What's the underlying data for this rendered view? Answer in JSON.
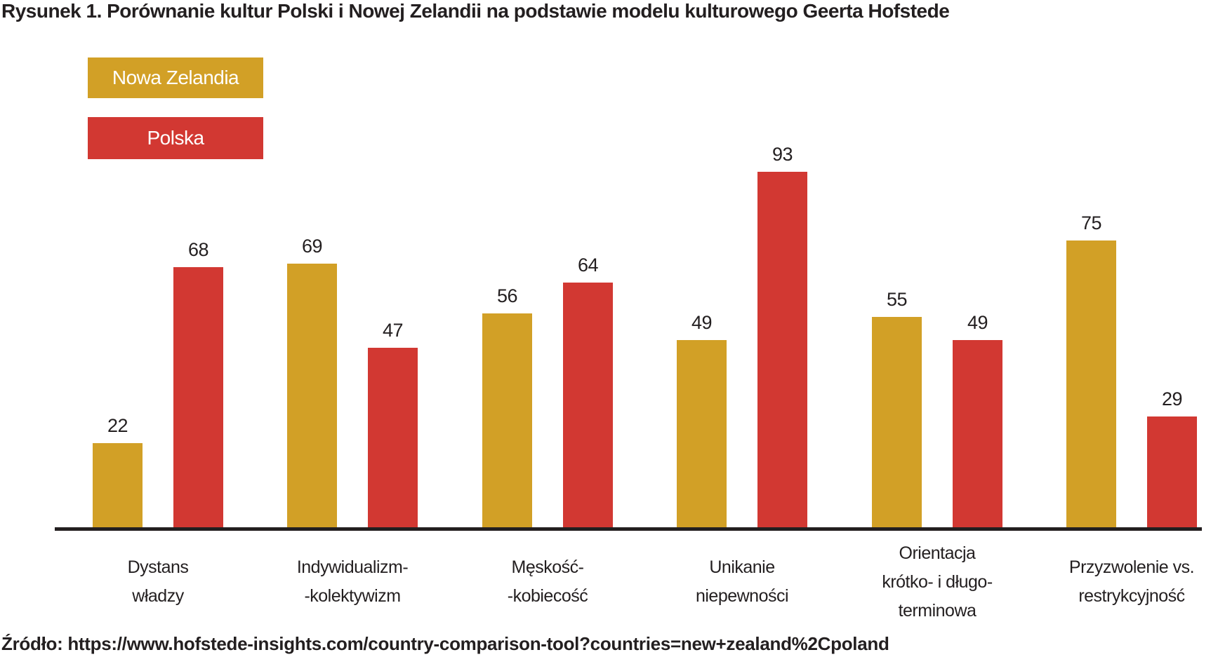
{
  "title": "Rysunek 1. Porównanie kultur Polski i Nowej Zelandii na podstawie modelu kulturowego Geerta Hofstede",
  "source": "Źródło: https://www.hofstede-insights.com/country-comparison-tool?countries=new+zealand%2Cpoland",
  "legend": [
    {
      "label": "Nowa Zelandia",
      "color": "#D2A026"
    },
    {
      "label": "Polska",
      "color": "#D23832"
    }
  ],
  "colors": {
    "nowa_zelandia": "#D2A026",
    "polska": "#D23832",
    "axis": "#231F20",
    "text": "#231F20",
    "background": "#FFFFFF"
  },
  "chart_data": {
    "type": "bar",
    "title": "Porównanie kultur Polski i Nowej Zelandii na podstawie modelu kulturowego Geerta Hofstede",
    "categories": [
      {
        "label": "Dystans władzy",
        "lines": [
          "Dystans",
          "władzy"
        ]
      },
      {
        "label": "Indywidualizm–kolektywizm",
        "lines": [
          "Indywidualizm-",
          "-kolektywizm"
        ]
      },
      {
        "label": "Męskość–kobiecość",
        "lines": [
          "Męskość-",
          "-kobiecość"
        ]
      },
      {
        "label": "Unikanie niepewności",
        "lines": [
          "Unikanie",
          "niepewności"
        ]
      },
      {
        "label": "Orientacja krótko- i długoterminowa",
        "lines": [
          "Orientacja",
          "krótko- i długo-",
          "terminowa"
        ]
      },
      {
        "label": "Przyzwolenie vs. restrykcyjność",
        "lines": [
          "Przyzwolenie vs.",
          "restrykcyjność"
        ]
      }
    ],
    "series": [
      {
        "name": "Nowa Zelandia",
        "color": "#D2A026",
        "values": [
          22,
          69,
          56,
          49,
          55,
          75
        ]
      },
      {
        "name": "Polska",
        "color": "#D23832",
        "values": [
          68,
          47,
          64,
          93,
          49,
          29
        ]
      }
    ],
    "ylim": [
      0,
      100
    ],
    "xlabel": "",
    "ylabel": "",
    "grid": false,
    "y_axis_visible": false,
    "data_labels": true,
    "legend_position": "top-left"
  }
}
